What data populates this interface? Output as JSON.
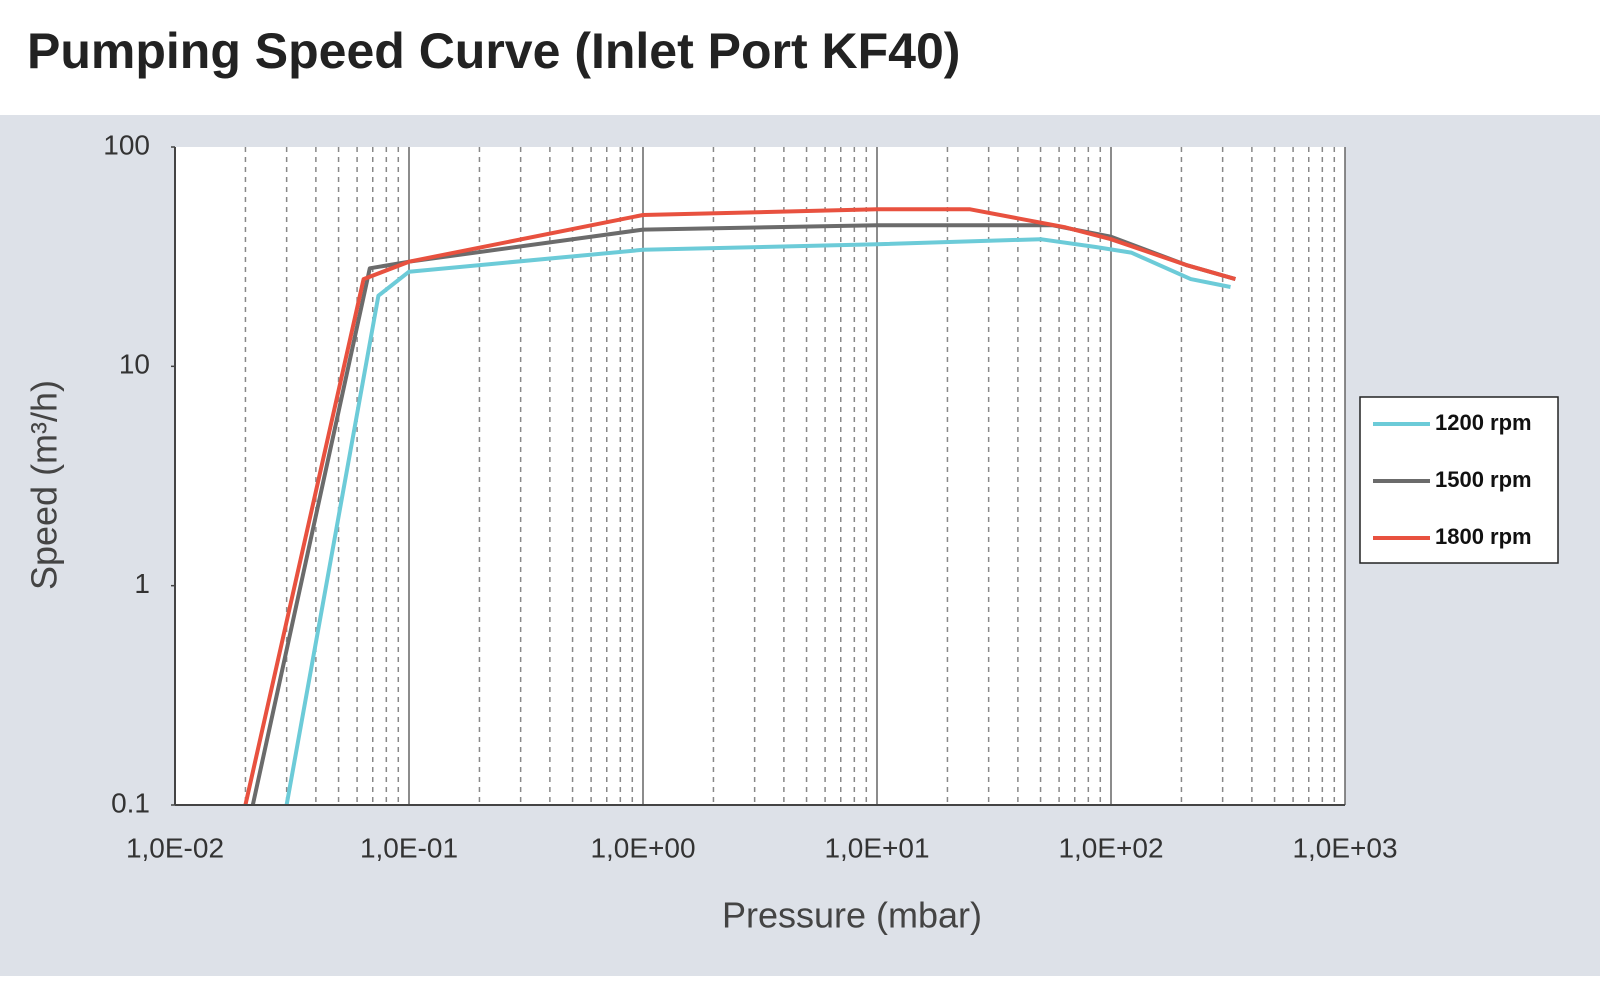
{
  "chart_data": {
    "type": "line",
    "title": "Pumping Speed Curve (Inlet Port KF40)",
    "x_label": "Pressure (mbar)",
    "y_label": "Speed (m³/h)",
    "x_log": true,
    "y_log": true,
    "x_minor_grid": true,
    "xlim": [
      0.01,
      1000
    ],
    "ylim": [
      0.1,
      100
    ],
    "xticks": [
      {
        "value": 0.01,
        "label": "1,0E-02"
      },
      {
        "value": 0.1,
        "label": "1,0E-01"
      },
      {
        "value": 1,
        "label": "1,0E+00"
      },
      {
        "value": 10,
        "label": "1,0E+01"
      },
      {
        "value": 100,
        "label": "1,0E+02"
      },
      {
        "value": 1000,
        "label": "1,0E+03"
      }
    ],
    "yticks": [
      0.1,
      1,
      10,
      100
    ],
    "legend": "right",
    "series": [
      {
        "name": "1200 rpm",
        "color": "#6ccbd8",
        "x": [
          0.03,
          0.074,
          0.1,
          1,
          10,
          50,
          86,
          122,
          219,
          324
        ],
        "values": [
          0.1,
          21,
          27,
          34,
          36,
          38,
          35,
          33,
          25,
          23
        ]
      },
      {
        "name": "1500 rpm",
        "color": "#6b6b6b",
        "x": [
          0.0215,
          0.068,
          0.1,
          1,
          10,
          56,
          100,
          209,
          340
        ],
        "values": [
          0.1,
          28,
          30,
          42,
          44,
          44,
          39,
          29,
          25
        ]
      },
      {
        "name": "1800 rpm",
        "color": "#e8513f",
        "x": [
          0.02,
          0.064,
          0.1,
          1,
          10,
          25,
          64,
          100,
          209,
          340
        ],
        "values": [
          0.1,
          25,
          30,
          49,
          52,
          52,
          43,
          38,
          29,
          25
        ]
      }
    ]
  }
}
